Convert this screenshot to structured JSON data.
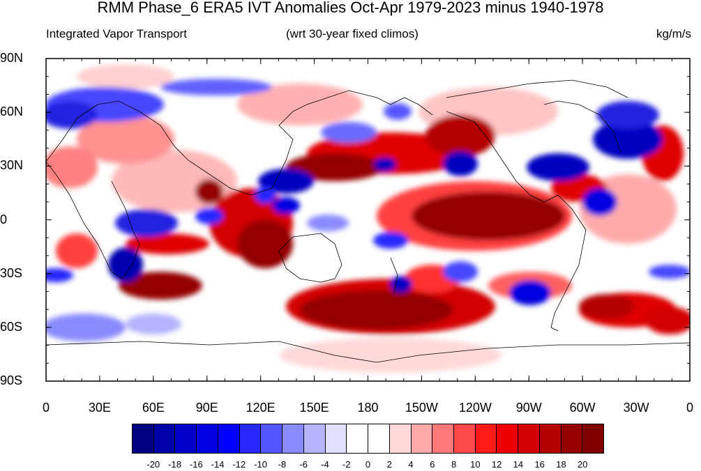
{
  "title": "RMM Phase_6 ERA5 IVT Anomalies Oct-Apr 1979-2023 minus 1940-1978",
  "subtitle_left": "Integrated Vapor Transport",
  "subtitle_center": "(wrt 30-year fixed climos)",
  "subtitle_right": "kg/m/s",
  "y_ticks": [
    "90N",
    "60N",
    "30N",
    "0",
    "30S",
    "60S",
    "90S"
  ],
  "x_ticks": [
    "0",
    "30E",
    "60E",
    "90E",
    "120E",
    "150E",
    "180",
    "150W",
    "120W",
    "90W",
    "60W",
    "30W",
    "0"
  ],
  "colorbar": {
    "labels": [
      "-20",
      "-18",
      "-16",
      "-14",
      "-12",
      "-10",
      "-8",
      "-6",
      "-4",
      "-2",
      "0",
      "2",
      "4",
      "6",
      "8",
      "10",
      "12",
      "14",
      "16",
      "18",
      "20"
    ],
    "colors": [
      "#000080",
      "#0000a8",
      "#0000c8",
      "#0000e0",
      "#0000ff",
      "#2828ff",
      "#5656ff",
      "#8a8aff",
      "#b4b4ff",
      "#e0e0ff",
      "#ffffff",
      "#ffffff",
      "#ffd8d8",
      "#ffaaaa",
      "#ff7878",
      "#ff4848",
      "#ff1a1a",
      "#f00000",
      "#d40000",
      "#b40000",
      "#940000",
      "#800000"
    ]
  }
}
